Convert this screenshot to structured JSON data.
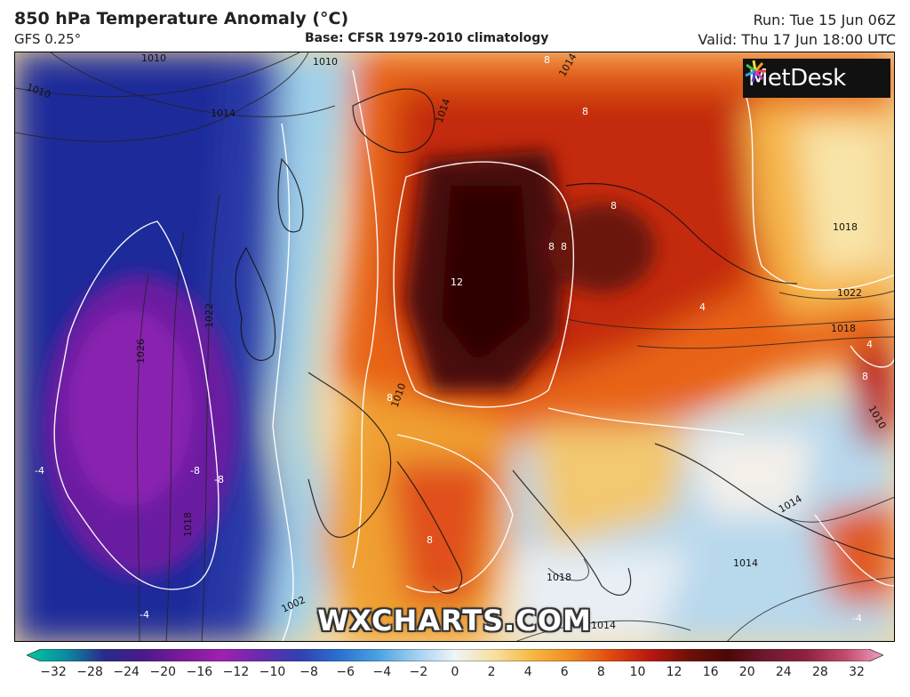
{
  "header": {
    "title": "850 hPa Temperature Anomaly (°C)",
    "model": "GFS 0.25°",
    "base": "Base: CFSR 1979-2010 climatology",
    "run": "Run: Tue 15 Jun 06Z",
    "valid": "Valid: Thu 17 Jun 18:00 UTC"
  },
  "logo": {
    "text": "MetDesk"
  },
  "watermark": "WXCHARTS.COM",
  "map_labels": {
    "isobars": [
      "1010",
      "1010",
      "1014",
      "1010",
      "1014",
      "1026",
      "1022",
      "1018",
      "1022",
      "1018",
      "1010",
      "1014",
      "1018",
      "1014",
      "1014",
      "1002",
      "1010",
      "1018",
      "1014"
    ],
    "anomaly": [
      "12",
      "8",
      "8",
      "8",
      "8",
      "8",
      "8",
      "8",
      "8",
      "4",
      "-4",
      "-4",
      "-8",
      "-8",
      "-4",
      "4"
    ]
  },
  "colorbar": {
    "ticks": [
      "−32",
      "−28",
      "−24",
      "−20",
      "−16",
      "−12",
      "−10",
      "−8",
      "−6",
      "−4",
      "−2",
      "0",
      "2",
      "4",
      "6",
      "8",
      "10",
      "12",
      "16",
      "20",
      "24",
      "28",
      "32"
    ],
    "colors": [
      "#00c8a0",
      "#0a8ca0",
      "#2a2a8a",
      "#4a1a8a",
      "#7a1a9a",
      "#a020b0",
      "#6a2ab0",
      "#3040b0",
      "#2a70d0",
      "#4aa0e0",
      "#a0d0f0",
      "#f0f4f8",
      "#f7e0a0",
      "#f6b840",
      "#f08a20",
      "#e04a10",
      "#b81810",
      "#701008",
      "#4a0808",
      "#701830",
      "#902040",
      "#c04a6a",
      "#f0a0c0"
    ]
  }
}
